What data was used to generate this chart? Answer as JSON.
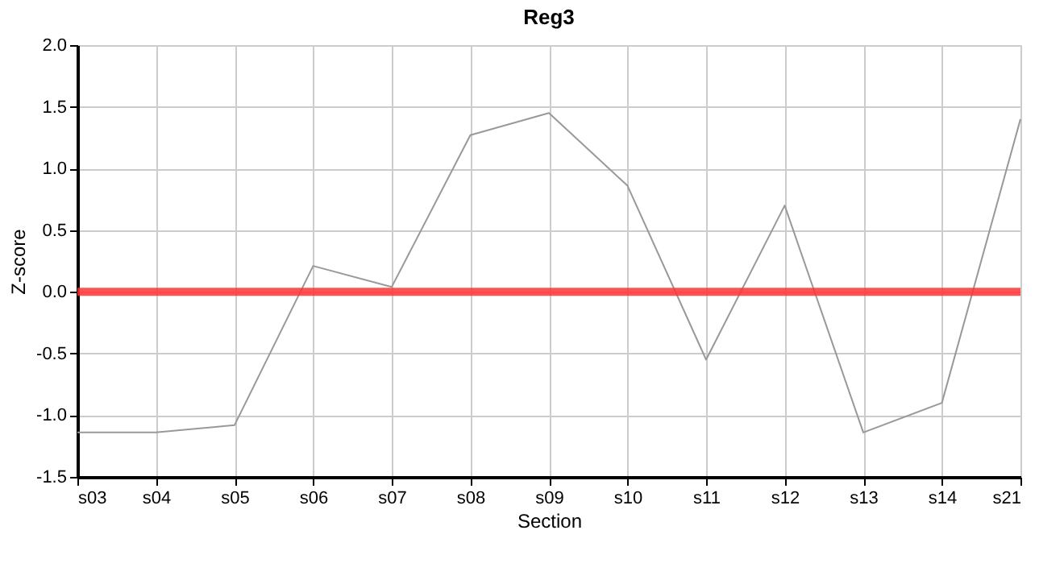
{
  "chart_data": {
    "type": "line",
    "title": "Reg3",
    "xlabel": "Section",
    "ylabel": "Z-score",
    "categories": [
      "s03",
      "s04",
      "s05",
      "s06",
      "s07",
      "s08",
      "s09",
      "s10",
      "s11",
      "s12",
      "s13",
      "s14",
      "s21"
    ],
    "series": [
      {
        "color": "#999999",
        "values": [
          -1.14,
          -1.14,
          -1.08,
          0.21,
          0.04,
          1.27,
          1.45,
          0.86,
          -0.55,
          0.7,
          -1.14,
          -0.9,
          1.4
        ]
      }
    ],
    "ylim": [
      -1.5,
      2.0
    ],
    "yticks": [
      {
        "value": -1.5,
        "label": "-1.5"
      },
      {
        "value": -1.0,
        "label": "-1.0"
      },
      {
        "value": -0.5,
        "label": "-0.5"
      },
      {
        "value": 0,
        "label": "0.0"
      },
      {
        "value": 0.5,
        "label": "0.5"
      },
      {
        "value": 1.0,
        "label": "1.0"
      },
      {
        "value": 1.5,
        "label": "1.5"
      },
      {
        "value": 2.0,
        "label": "2.0"
      }
    ],
    "ref_lines": [
      {
        "axis": "y",
        "value": 0,
        "color": "#ff3333"
      }
    ],
    "grid": true,
    "marker": "none",
    "line_style": "solid"
  }
}
